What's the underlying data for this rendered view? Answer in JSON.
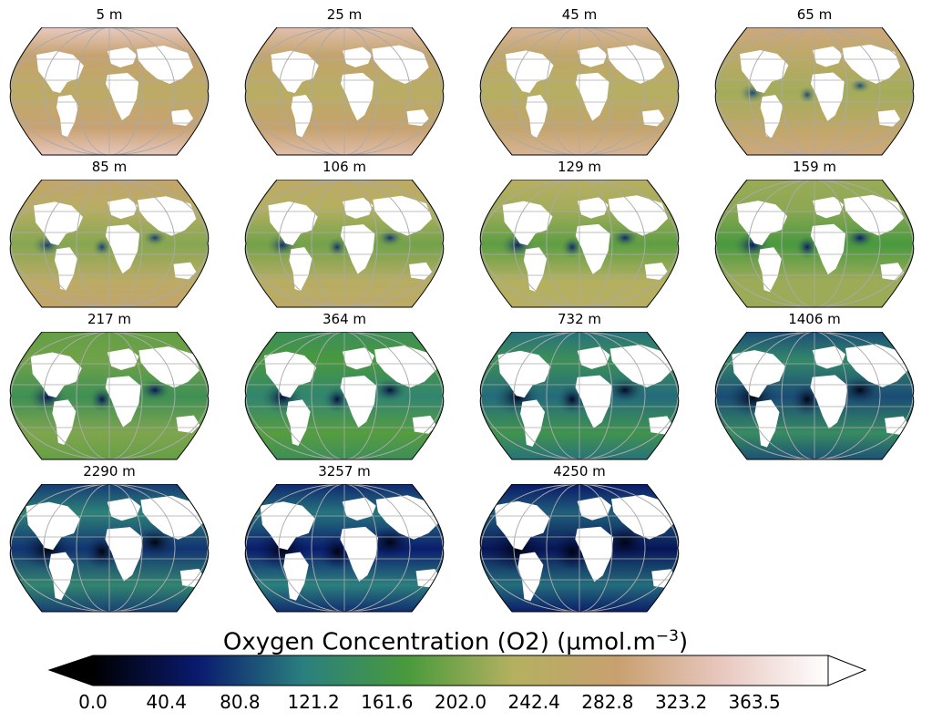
{
  "panels": [
    {
      "depth_label": "5 m",
      "level": 0.0
    },
    {
      "depth_label": "25 m",
      "level": 0.04
    },
    {
      "depth_label": "45 m",
      "level": 0.08
    },
    {
      "depth_label": "65 m",
      "level": 0.13
    },
    {
      "depth_label": "85 m",
      "level": 0.2
    },
    {
      "depth_label": "106 m",
      "level": 0.25
    },
    {
      "depth_label": "129 m",
      "level": 0.3
    },
    {
      "depth_label": "159 m",
      "level": 0.36
    },
    {
      "depth_label": "217 m",
      "level": 0.44
    },
    {
      "depth_label": "364 m",
      "level": 0.55
    },
    {
      "depth_label": "732 m",
      "level": 0.66
    },
    {
      "depth_label": "1406 m",
      "level": 0.74
    },
    {
      "depth_label": "2290 m",
      "level": 0.8
    },
    {
      "depth_label": "3257 m",
      "level": 0.86
    },
    {
      "depth_label": "4250 m",
      "level": 0.92
    }
  ],
  "colorbar": {
    "title": "Oxygen Concentration (O2) (µmol.m",
    "title_sup": "−3",
    "title_end": ")",
    "ticks": [
      "0.0",
      "40.4",
      "80.8",
      "121.2",
      "161.6",
      "202.0",
      "242.4",
      "282.8",
      "323.2",
      "363.5"
    ],
    "tick_values": [
      0.0,
      40.4,
      80.8,
      121.2,
      161.6,
      202.0,
      242.4,
      282.8,
      323.2,
      363.5
    ],
    "vmin": 0.0,
    "vmax": 404.0,
    "extend": "both",
    "colormap_stops": [
      "#000000",
      "#0a1a6e",
      "#2a7f7f",
      "#4a9a3c",
      "#b4b060",
      "#c8a070",
      "#e8c8c0",
      "#ffffff"
    ]
  },
  "colors": {
    "land": "#ffffff",
    "grid": "#aaaaaa",
    "outline": "#000000",
    "deep_low": "#1a3a7a",
    "mid_green": "#4e9a4a",
    "high_tan": "#c0a46a",
    "polar_pink": "#dcb8b0"
  }
}
